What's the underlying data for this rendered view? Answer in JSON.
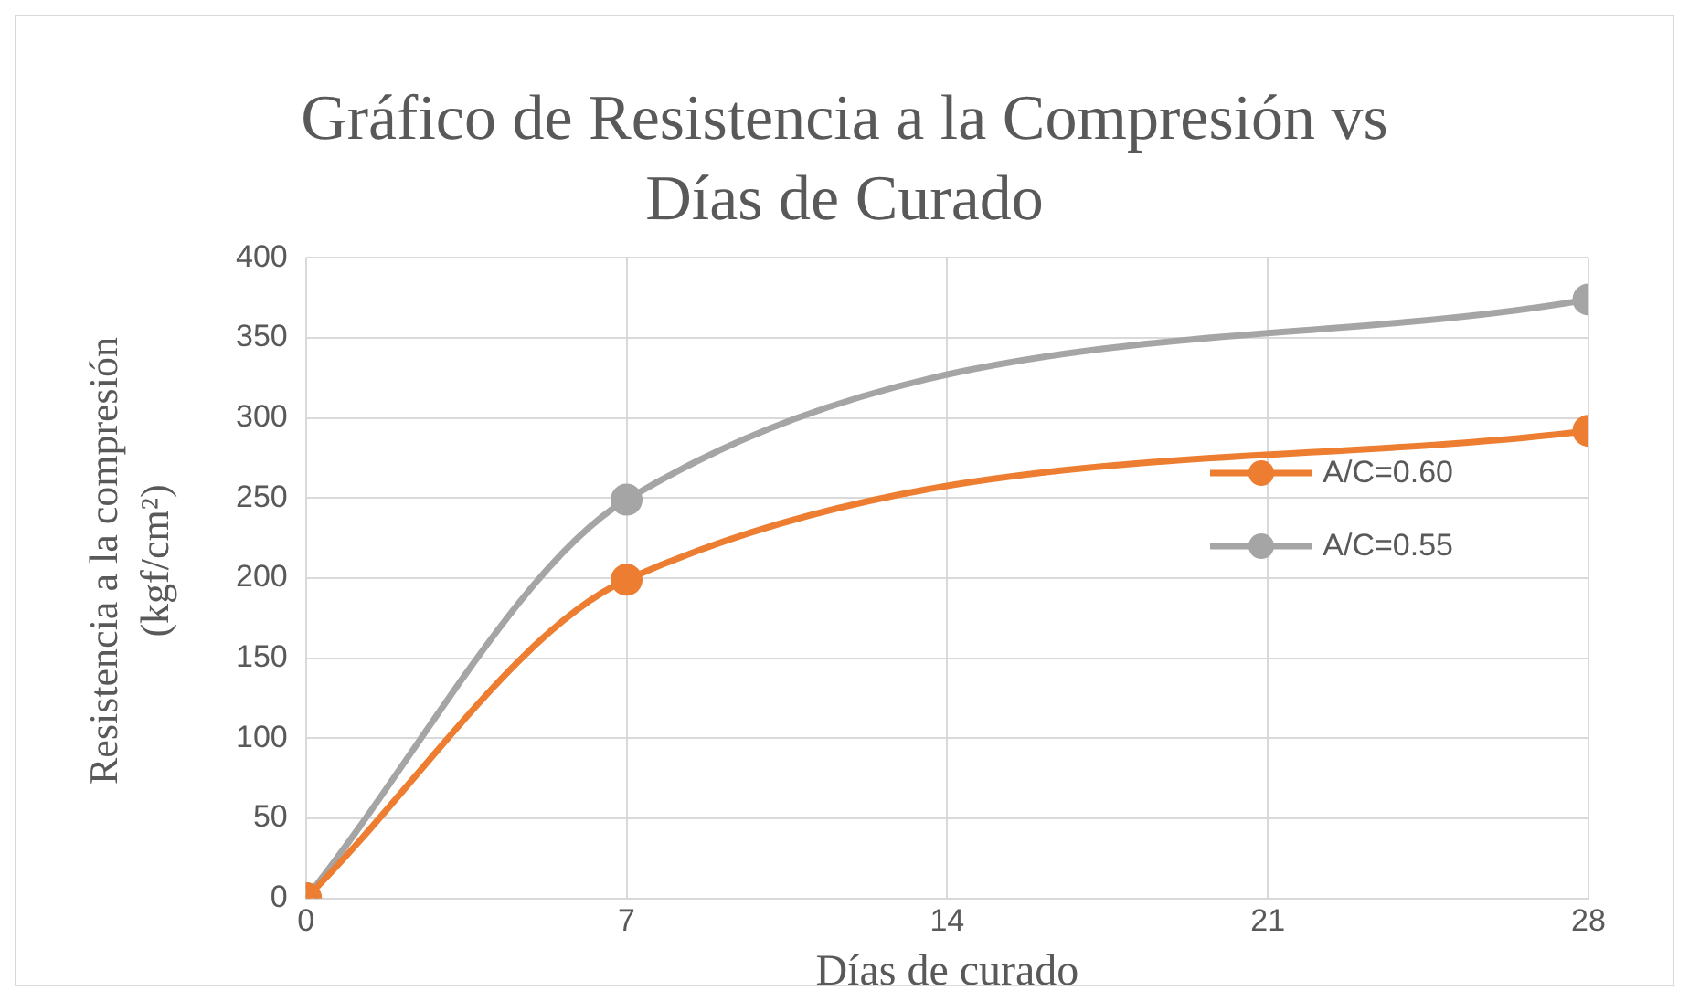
{
  "chart_data": {
    "type": "line",
    "title": "Gráfico de Resistencia a la Compresión vs Días de Curado",
    "xlabel": "Días de curado",
    "ylabel": "Resistencia a la compresión (kgf/cm²)",
    "x": [
      0,
      7,
      28
    ],
    "series": [
      {
        "name": "A/C=0.60",
        "color": "#ed7d31",
        "values": [
          0,
          199,
          292
        ]
      },
      {
        "name": "A/C=0.55",
        "color": "#a5a5a5",
        "values": [
          0,
          249,
          374
        ]
      }
    ],
    "xlim": [
      0,
      28
    ],
    "xticks": [
      0,
      7,
      14,
      21,
      28
    ],
    "ylim": [
      0,
      400
    ],
    "yticks": [
      0,
      50,
      100,
      150,
      200,
      250,
      300,
      350,
      400
    ],
    "grid": true,
    "legend": "right",
    "marker": "circle",
    "line_style": "solid"
  }
}
